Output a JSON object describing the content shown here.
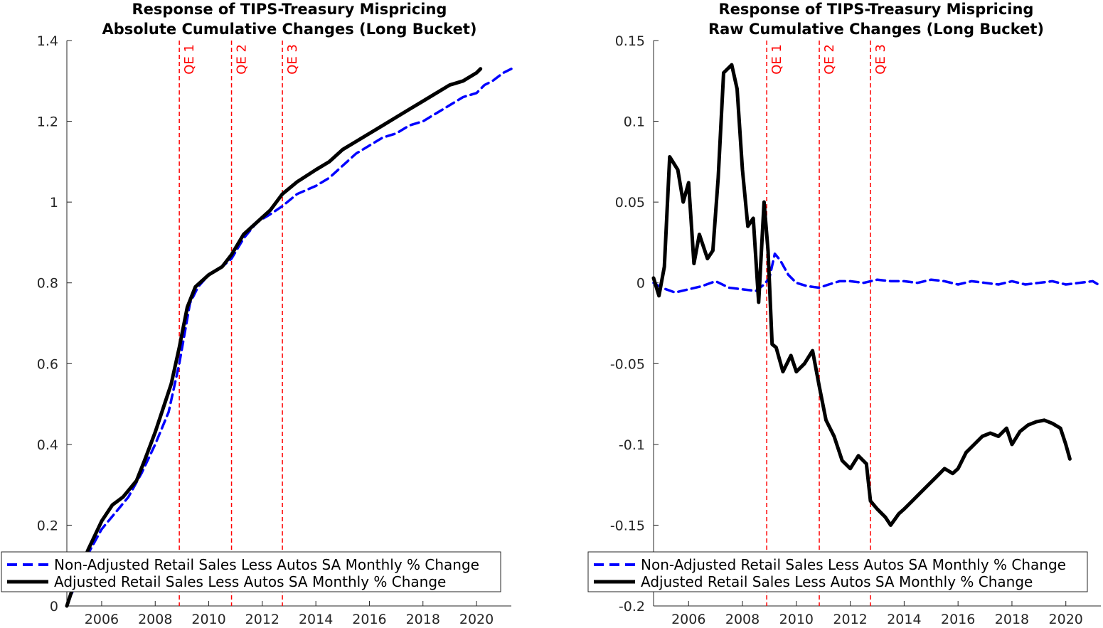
{
  "chart_data": [
    {
      "type": "line",
      "title": "Response of TIPS-Treasury Mispricing",
      "subtitle": "Absolute Cumulative Changes (Long Bucket)",
      "xlabel": "",
      "ylabel": "",
      "xlim": [
        2004.7,
        2021.3
      ],
      "ylim": [
        0,
        1.4
      ],
      "xticks": [
        "2006",
        "2008",
        "2010",
        "2012",
        "2014",
        "2016",
        "2018",
        "2020"
      ],
      "yticks": [
        "0",
        "0.2",
        "0.4",
        "0.6",
        "0.8",
        "1",
        "1.2",
        "1.4"
      ],
      "grid": false,
      "legend_position": "bottom-left",
      "vlines": [
        {
          "label": "QE 1",
          "x": 2008.9
        },
        {
          "label": "QE 2",
          "x": 2010.85
        },
        {
          "label": "QE 3",
          "x": 2012.75
        }
      ],
      "series": [
        {
          "name": "Non-Adjusted Retail Sales Less Autos SA Monthly % Change",
          "style": "dashed",
          "color": "#0000ff",
          "x": [
            2004.7,
            2005.0,
            2005.5,
            2006.0,
            2006.5,
            2007.0,
            2007.5,
            2008.0,
            2008.5,
            2008.9,
            2009.3,
            2009.6,
            2010.0,
            2010.5,
            2010.85,
            2011.3,
            2011.8,
            2012.3,
            2012.75,
            2013.3,
            2014.0,
            2014.5,
            2015.0,
            2015.5,
            2016.0,
            2016.5,
            2017.0,
            2017.5,
            2018.0,
            2018.5,
            2019.0,
            2019.5,
            2020.0,
            2020.3,
            2020.6,
            2021.0,
            2021.3
          ],
          "y": [
            0.0,
            0.05,
            0.13,
            0.19,
            0.23,
            0.27,
            0.33,
            0.4,
            0.48,
            0.6,
            0.75,
            0.79,
            0.82,
            0.84,
            0.86,
            0.91,
            0.95,
            0.97,
            0.99,
            1.02,
            1.04,
            1.06,
            1.09,
            1.12,
            1.14,
            1.16,
            1.17,
            1.19,
            1.2,
            1.22,
            1.24,
            1.26,
            1.27,
            1.29,
            1.3,
            1.32,
            1.33
          ]
        },
        {
          "name": "Adjusted Retail Sales Less Autos SA Monthly % Change",
          "style": "solid",
          "color": "#000000",
          "x": [
            2004.7,
            2005.0,
            2005.5,
            2006.0,
            2006.4,
            2006.8,
            2007.3,
            2007.6,
            2008.0,
            2008.3,
            2008.6,
            2008.9,
            2009.2,
            2009.5,
            2010.0,
            2010.5,
            2010.85,
            2011.3,
            2011.8,
            2012.3,
            2012.75,
            2013.3,
            2014.0,
            2014.5,
            2015.0,
            2015.5,
            2016.0,
            2016.5,
            2017.0,
            2017.5,
            2018.0,
            2018.5,
            2019.0,
            2019.5,
            2020.0,
            2020.15
          ],
          "y": [
            0.0,
            0.06,
            0.14,
            0.21,
            0.25,
            0.27,
            0.31,
            0.36,
            0.43,
            0.49,
            0.55,
            0.64,
            0.74,
            0.79,
            0.82,
            0.84,
            0.87,
            0.92,
            0.95,
            0.98,
            1.02,
            1.05,
            1.08,
            1.1,
            1.13,
            1.15,
            1.17,
            1.19,
            1.21,
            1.23,
            1.25,
            1.27,
            1.29,
            1.3,
            1.32,
            1.33
          ]
        }
      ]
    },
    {
      "type": "line",
      "title": "Response of TIPS-Treasury Mispricing",
      "subtitle": "Raw Cumulative Changes (Long Bucket)",
      "xlabel": "",
      "ylabel": "",
      "xlim": [
        2004.7,
        2021.3
      ],
      "ylim": [
        -0.2,
        0.15
      ],
      "xticks": [
        "2006",
        "2008",
        "2010",
        "2012",
        "2014",
        "2016",
        "2018",
        "2020"
      ],
      "yticks": [
        "-0.2",
        "-0.15",
        "-0.1",
        "-0.05",
        "0",
        "0.05",
        "0.1",
        "0.15"
      ],
      "grid": false,
      "legend_position": "bottom-left",
      "vlines": [
        {
          "label": "QE 1",
          "x": 2008.9
        },
        {
          "label": "QE 2",
          "x": 2010.85
        },
        {
          "label": "QE 3",
          "x": 2012.75
        }
      ],
      "series": [
        {
          "name": "Non-Adjusted Retail Sales Less Autos SA Monthly % Change",
          "style": "dashed",
          "color": "#0000ff",
          "x": [
            2004.7,
            2005.0,
            2005.5,
            2006.0,
            2006.5,
            2007.0,
            2007.5,
            2008.0,
            2008.5,
            2008.8,
            2009.0,
            2009.2,
            2009.4,
            2009.7,
            2010.0,
            2010.4,
            2010.85,
            2011.2,
            2011.6,
            2012.0,
            2012.5,
            2013.0,
            2013.5,
            2014.0,
            2014.5,
            2015.0,
            2015.5,
            2016.0,
            2016.5,
            2017.0,
            2017.5,
            2018.0,
            2018.5,
            2019.0,
            2019.5,
            2020.0,
            2020.5,
            2021.0,
            2021.3
          ],
          "y": [
            0.0,
            -0.003,
            -0.006,
            -0.004,
            -0.002,
            0.001,
            -0.003,
            -0.004,
            -0.005,
            -0.001,
            0.003,
            0.018,
            0.014,
            0.005,
            0.0,
            -0.002,
            -0.003,
            -0.001,
            0.001,
            0.001,
            0.0,
            0.002,
            0.001,
            0.001,
            0.0,
            0.002,
            0.001,
            -0.001,
            0.001,
            0.0,
            -0.001,
            0.001,
            -0.001,
            0.0,
            0.001,
            -0.001,
            0.0,
            0.001,
            -0.002
          ]
        },
        {
          "name": "Adjusted Retail Sales Less Autos SA Monthly % Change",
          "style": "solid",
          "color": "#000000",
          "x": [
            2004.7,
            2004.9,
            2005.1,
            2005.3,
            2005.6,
            2005.8,
            2006.0,
            2006.2,
            2006.4,
            2006.7,
            2006.9,
            2007.1,
            2007.3,
            2007.6,
            2007.8,
            2008.0,
            2008.2,
            2008.4,
            2008.6,
            2008.8,
            2008.95,
            2009.1,
            2009.25,
            2009.5,
            2009.8,
            2010.0,
            2010.3,
            2010.6,
            2010.85,
            2011.1,
            2011.4,
            2011.7,
            2012.0,
            2012.3,
            2012.6,
            2012.75,
            2013.0,
            2013.3,
            2013.5,
            2013.8,
            2014.0,
            2014.3,
            2014.6,
            2014.9,
            2015.2,
            2015.5,
            2015.8,
            2016.0,
            2016.3,
            2016.6,
            2016.9,
            2017.2,
            2017.5,
            2017.8,
            2018.0,
            2018.3,
            2018.6,
            2018.9,
            2019.2,
            2019.5,
            2019.8,
            2020.0,
            2020.15
          ],
          "y": [
            0.003,
            -0.008,
            0.01,
            0.078,
            0.07,
            0.05,
            0.062,
            0.012,
            0.03,
            0.015,
            0.02,
            0.065,
            0.13,
            0.135,
            0.12,
            0.07,
            0.035,
            0.04,
            -0.012,
            0.05,
            0.02,
            -0.038,
            -0.04,
            -0.055,
            -0.045,
            -0.055,
            -0.05,
            -0.042,
            -0.064,
            -0.085,
            -0.095,
            -0.11,
            -0.115,
            -0.107,
            -0.112,
            -0.135,
            -0.14,
            -0.145,
            -0.15,
            -0.143,
            -0.14,
            -0.135,
            -0.13,
            -0.125,
            -0.12,
            -0.115,
            -0.118,
            -0.115,
            -0.105,
            -0.1,
            -0.095,
            -0.093,
            -0.095,
            -0.09,
            -0.1,
            -0.092,
            -0.088,
            -0.086,
            -0.085,
            -0.087,
            -0.09,
            -0.1,
            -0.109
          ]
        }
      ]
    }
  ],
  "legend": {
    "labels": [
      "Non-Adjusted Retail Sales Less Autos SA Monthly % Change",
      "Adjusted Retail Sales Less Autos SA Monthly % Change"
    ]
  }
}
